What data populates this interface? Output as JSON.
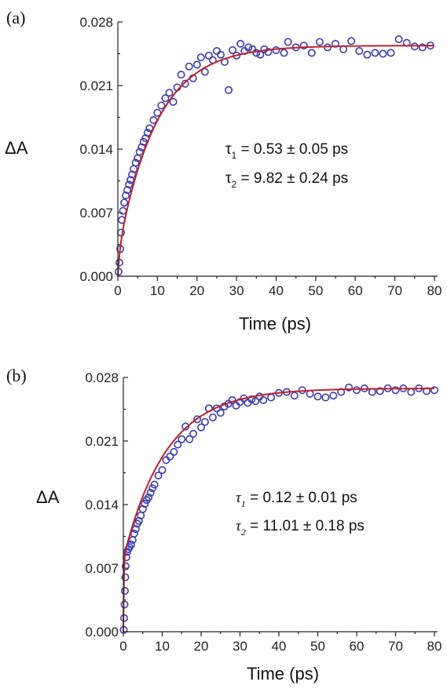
{
  "colors": {
    "points": "#3b3bb0",
    "fit": "#c0202a"
  },
  "chart_data": [
    {
      "type": "scatter",
      "panel_label": "(a)",
      "xlabel": "Time (ps)",
      "ylabel": "ΔA",
      "xlim": [
        0,
        80
      ],
      "ylim": [
        0,
        0.028
      ],
      "xticks": [
        "0",
        "10",
        "20",
        "30",
        "40",
        "50",
        "60",
        "70",
        "80"
      ],
      "yticks": [
        "0.000",
        "0.007",
        "0.014",
        "0.021",
        "0.028"
      ],
      "annotation": [
        {
          "symbol": "τ",
          "sub": "1",
          "text": " = 0.53 ± 0.05 ps"
        },
        {
          "symbol": "τ",
          "sub": "2",
          "text": " = 9.82 ± 0.24 ps"
        }
      ],
      "fit": {
        "amplitude": 0.0254,
        "tau1": 0.53,
        "tau2": 9.82,
        "weight1": 0.1
      },
      "series": [
        {
          "name": "",
          "style": "open-circle",
          "x": [
            0.2,
            0.4,
            0.6,
            0.8,
            1.0,
            1.3,
            1.6,
            2.0,
            2.4,
            2.8,
            3.2,
            3.6,
            4.0,
            4.5,
            5.0,
            5.5,
            6.0,
            6.5,
            7.0,
            7.5,
            8.0,
            9.0,
            10,
            11,
            12,
            13,
            14,
            15,
            16,
            17,
            18,
            19,
            20,
            21,
            22,
            23,
            24,
            25,
            26,
            27,
            28,
            29,
            30,
            31,
            32,
            33,
            34,
            35,
            36,
            37,
            38,
            40,
            42,
            43,
            45,
            47,
            49,
            51,
            53,
            55,
            57,
            59,
            61,
            63,
            65,
            67,
            69,
            71,
            73,
            75,
            77,
            79
          ],
          "y": [
            0.0005,
            0.0015,
            0.003,
            0.0048,
            0.0062,
            0.0072,
            0.0081,
            0.0089,
            0.0095,
            0.0101,
            0.0106,
            0.0112,
            0.0118,
            0.0125,
            0.013,
            0.0137,
            0.0142,
            0.0148,
            0.0152,
            0.0158,
            0.0163,
            0.0172,
            0.018,
            0.0188,
            0.0196,
            0.0202,
            0.0192,
            0.0208,
            0.0222,
            0.0212,
            0.0231,
            0.0218,
            0.0233,
            0.0241,
            0.0225,
            0.0243,
            0.0238,
            0.0248,
            0.0244,
            0.0236,
            0.0205,
            0.0249,
            0.0243,
            0.0256,
            0.0248,
            0.0252,
            0.025,
            0.0246,
            0.0244,
            0.025,
            0.0247,
            0.0249,
            0.0246,
            0.0258,
            0.0252,
            0.0254,
            0.0246,
            0.0258,
            0.0252,
            0.0256,
            0.025,
            0.0259,
            0.0248,
            0.0244,
            0.0246,
            0.0245,
            0.0246,
            0.0261,
            0.0257,
            0.0253,
            0.0252,
            0.0254
          ]
        }
      ]
    },
    {
      "type": "scatter",
      "panel_label": "(b)",
      "xlabel": "Time (ps)",
      "ylabel": "ΔA",
      "xlim": [
        0,
        80
      ],
      "ylim": [
        0,
        0.028
      ],
      "xticks": [
        "0",
        "10",
        "20",
        "30",
        "40",
        "50",
        "60",
        "70",
        "80"
      ],
      "yticks": [
        "0.000",
        "0.007",
        "0.014",
        "0.021",
        "0.028"
      ],
      "annotation": [
        {
          "symbol": "τ",
          "sub": "1",
          "text": " = 0.12 ± 0.01 ps"
        },
        {
          "symbol": "τ",
          "sub": "2",
          "text": " = 11.01 ± 0.18 ps"
        }
      ],
      "fit": {
        "amplitude": 0.0268,
        "tau1": 0.12,
        "tau2": 11.01,
        "weight1": 0.3
      },
      "series": [
        {
          "name": "",
          "style": "open-circle",
          "x": [
            0.1,
            0.2,
            0.3,
            0.4,
            0.5,
            0.6,
            0.8,
            1.0,
            1.3,
            1.6,
            2.0,
            2.4,
            2.8,
            3.2,
            3.6,
            4.0,
            4.5,
            5.0,
            5.5,
            6.0,
            6.5,
            7.0,
            7.5,
            8.0,
            9.0,
            10,
            11,
            12,
            13,
            14,
            15,
            16,
            17,
            18,
            19,
            20,
            21,
            22,
            23,
            24,
            25,
            26,
            27,
            28,
            29,
            30,
            31,
            32,
            33,
            34,
            35,
            36,
            38,
            40,
            42,
            44,
            46,
            48,
            50,
            52,
            54,
            56,
            58,
            60,
            62,
            64,
            66,
            68,
            70,
            72,
            74,
            76,
            78,
            80
          ],
          "y": [
            0.0002,
            0.0015,
            0.003,
            0.0045,
            0.006,
            0.0072,
            0.0082,
            0.0088,
            0.0091,
            0.0093,
            0.0096,
            0.0101,
            0.0108,
            0.0113,
            0.0119,
            0.0122,
            0.0128,
            0.0135,
            0.0141,
            0.0145,
            0.0148,
            0.0153,
            0.0158,
            0.0162,
            0.0172,
            0.0178,
            0.0189,
            0.0193,
            0.0198,
            0.0206,
            0.0212,
            0.0226,
            0.0212,
            0.0218,
            0.0234,
            0.0225,
            0.0231,
            0.0246,
            0.0236,
            0.0246,
            0.0241,
            0.0248,
            0.0251,
            0.0255,
            0.0249,
            0.0253,
            0.0257,
            0.0252,
            0.0256,
            0.0254,
            0.0259,
            0.0255,
            0.0258,
            0.0263,
            0.0264,
            0.026,
            0.0266,
            0.0262,
            0.0259,
            0.0258,
            0.026,
            0.0264,
            0.0269,
            0.0266,
            0.0268,
            0.0264,
            0.0265,
            0.0268,
            0.0266,
            0.0268,
            0.0264,
            0.0268,
            0.0265,
            0.0266
          ]
        }
      ]
    }
  ]
}
